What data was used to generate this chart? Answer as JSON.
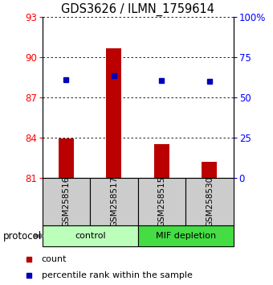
{
  "title": "GDS3626 / ILMN_1759614",
  "samples": [
    "GSM258516",
    "GSM258517",
    "GSM258515",
    "GSM258530"
  ],
  "bar_values": [
    83.98,
    90.68,
    83.55,
    82.2
  ],
  "bar_base": 81.0,
  "percentile_values": [
    88.35,
    88.65,
    88.3,
    88.2
  ],
  "ylim_left": [
    81,
    93
  ],
  "ylim_right": [
    0,
    100
  ],
  "yticks_left": [
    81,
    84,
    87,
    90,
    93
  ],
  "yticks_right": [
    0,
    25,
    50,
    75,
    100
  ],
  "ytick_labels_right": [
    "0",
    "25",
    "50",
    "75",
    "100%"
  ],
  "bar_color": "#bb0000",
  "dot_color": "#0000bb",
  "groups": [
    {
      "label": "control",
      "indices": [
        0,
        1
      ],
      "color": "#bbffbb"
    },
    {
      "label": "MIF depletion",
      "indices": [
        2,
        3
      ],
      "color": "#44dd44"
    }
  ],
  "protocol_label": "protocol",
  "legend_items": [
    {
      "color": "#bb0000",
      "label": "count"
    },
    {
      "color": "#0000bb",
      "label": "percentile rank within the sample"
    }
  ],
  "sample_box_color": "#cccccc",
  "title_fontsize": 10.5,
  "tick_fontsize": 8.5,
  "bar_width": 0.32
}
